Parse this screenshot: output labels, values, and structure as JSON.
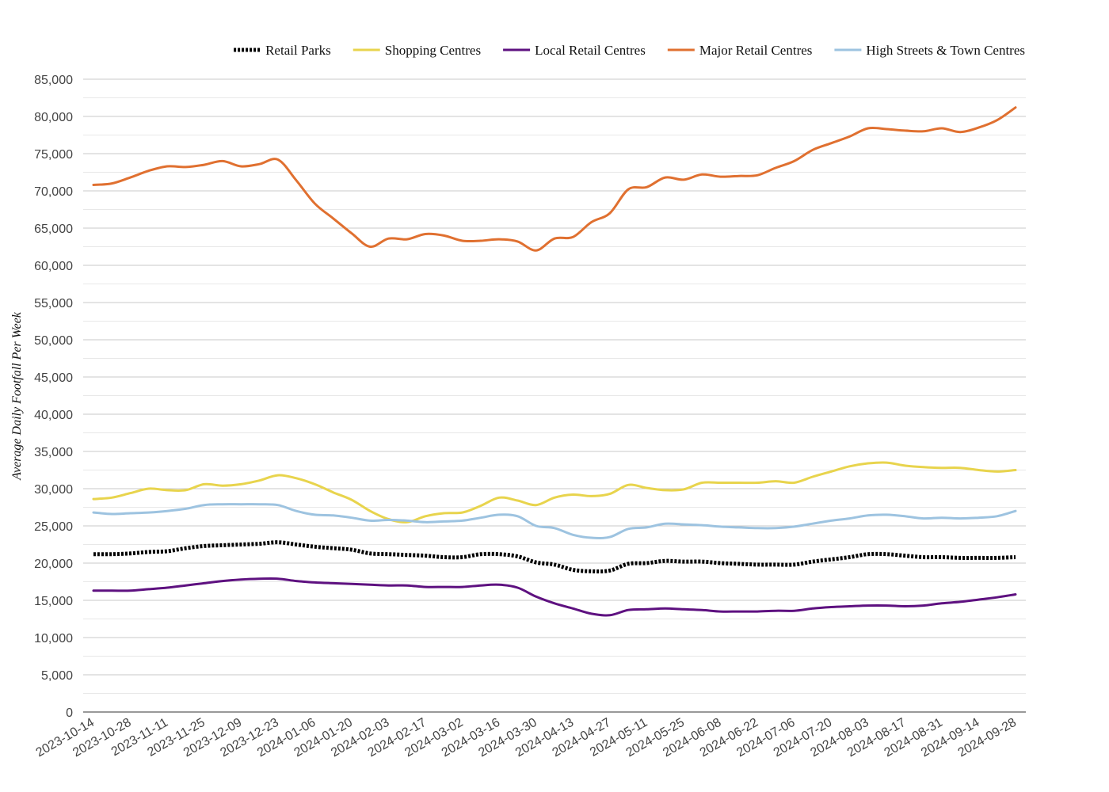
{
  "chart_data": {
    "type": "line",
    "title": "",
    "xlabel": "",
    "ylabel": "Average Daily Footfall Per Week",
    "ylim": [
      0,
      85000
    ],
    "y_major_step": 5000,
    "grid": "horizontal major and minor",
    "legend_position": "top",
    "x_tick_labels": [
      "2023-10-14",
      "2023-10-28",
      "2023-11-11",
      "2023-11-25",
      "2023-12-09",
      "2023-12-23",
      "2024-01-06",
      "2024-01-20",
      "2024-02-03",
      "2024-02-17",
      "2024-03-02",
      "2024-03-16",
      "2024-03-30",
      "2024-04-13",
      "2024-04-27",
      "2024-05-11",
      "2024-05-25",
      "2024-06-08",
      "2024-06-22",
      "2024-07-06",
      "2024-07-20",
      "2024-08-03",
      "2024-08-17",
      "2024-08-31",
      "2024-09-14",
      "2024-09-28"
    ],
    "y_tick_labels": [
      "0",
      "5,000",
      "10,000",
      "15,000",
      "20,000",
      "25,000",
      "30,000",
      "35,000",
      "40,000",
      "45,000",
      "50,000",
      "55,000",
      "60,000",
      "65,000",
      "70,000",
      "75,000",
      "80,000",
      "85,000"
    ],
    "x": [
      "2023-10-14",
      "2023-10-21",
      "2023-10-28",
      "2023-11-04",
      "2023-11-11",
      "2023-11-18",
      "2023-11-25",
      "2023-12-02",
      "2023-12-09",
      "2023-12-16",
      "2023-12-23",
      "2023-12-30",
      "2024-01-06",
      "2024-01-13",
      "2024-01-20",
      "2024-01-27",
      "2024-02-03",
      "2024-02-10",
      "2024-02-17",
      "2024-02-24",
      "2024-03-02",
      "2024-03-09",
      "2024-03-16",
      "2024-03-23",
      "2024-03-30",
      "2024-04-06",
      "2024-04-13",
      "2024-04-20",
      "2024-04-27",
      "2024-05-04",
      "2024-05-11",
      "2024-05-18",
      "2024-05-25",
      "2024-06-01",
      "2024-06-08",
      "2024-06-15",
      "2024-06-22",
      "2024-06-29",
      "2024-07-06",
      "2024-07-13",
      "2024-07-20",
      "2024-07-27",
      "2024-08-03",
      "2024-08-10",
      "2024-08-17",
      "2024-08-24",
      "2024-08-31",
      "2024-09-07",
      "2024-09-14",
      "2024-09-21",
      "2024-09-28"
    ],
    "series": [
      {
        "name": "Retail Parks",
        "color": "#000000",
        "style": "dotted",
        "values": [
          21200,
          21200,
          21300,
          21500,
          21600,
          22000,
          22300,
          22400,
          22500,
          22600,
          22800,
          22500,
          22200,
          22000,
          21800,
          21300,
          21200,
          21100,
          21000,
          20800,
          20800,
          21200,
          21200,
          20900,
          20100,
          19800,
          19100,
          18900,
          19000,
          19900,
          20000,
          20300,
          20200,
          20200,
          20000,
          19900,
          19800,
          19800,
          19800,
          20200,
          20500,
          20800,
          21200,
          21200,
          21000,
          20800,
          20800,
          20700,
          20700,
          20700,
          20800
        ]
      },
      {
        "name": "Shopping Centres",
        "color": "#E8D44D",
        "style": "solid",
        "values": [
          28600,
          28800,
          29400,
          30000,
          29800,
          29800,
          30600,
          30400,
          30600,
          31100,
          31800,
          31400,
          30600,
          29500,
          28500,
          27000,
          25900,
          25500,
          26300,
          26700,
          26800,
          27700,
          28800,
          28400,
          27800,
          28800,
          29200,
          29000,
          29300,
          30500,
          30100,
          29800,
          29900,
          30800,
          30800,
          30800,
          30800,
          31000,
          30800,
          31600,
          32300,
          33000,
          33400,
          33500,
          33100,
          32900,
          32800,
          32800,
          32500,
          32300,
          32500
        ]
      },
      {
        "name": "Local Retail Centres",
        "color": "#5E1180",
        "style": "solid",
        "values": [
          16300,
          16300,
          16300,
          16500,
          16700,
          17000,
          17300,
          17600,
          17800,
          17900,
          17900,
          17600,
          17400,
          17300,
          17200,
          17100,
          17000,
          17000,
          16800,
          16800,
          16800,
          17000,
          17100,
          16700,
          15500,
          14600,
          13900,
          13200,
          13000,
          13700,
          13800,
          13900,
          13800,
          13700,
          13500,
          13500,
          13500,
          13600,
          13600,
          13900,
          14100,
          14200,
          14300,
          14300,
          14200,
          14300,
          14600,
          14800,
          15100,
          15400,
          15800
        ]
      },
      {
        "name": "Major Retail Centres",
        "color": "#E07030",
        "style": "solid",
        "values": [
          70800,
          71000,
          71800,
          72700,
          73300,
          73200,
          73500,
          74000,
          73300,
          73600,
          74200,
          71400,
          68300,
          66300,
          64300,
          62500,
          63600,
          63500,
          64200,
          64000,
          63300,
          63300,
          63500,
          63200,
          62000,
          63600,
          63800,
          65800,
          67000,
          70200,
          70500,
          71800,
          71500,
          72200,
          71900,
          72000,
          72100,
          73100,
          74000,
          75500,
          76400,
          77300,
          78400,
          78300,
          78100,
          78000,
          78400,
          77900,
          78500,
          79500,
          81200
        ]
      },
      {
        "name": "High Streets & Town Centres",
        "color": "#9DC3E0",
        "style": "solid",
        "values": [
          26800,
          26600,
          26700,
          26800,
          27000,
          27300,
          27800,
          27900,
          27900,
          27900,
          27800,
          27000,
          26500,
          26400,
          26100,
          25700,
          25800,
          25700,
          25500,
          25600,
          25700,
          26100,
          26500,
          26300,
          25000,
          24700,
          23800,
          23400,
          23500,
          24600,
          24800,
          25300,
          25200,
          25100,
          24900,
          24800,
          24700,
          24700,
          24900,
          25300,
          25700,
          26000,
          26400,
          26500,
          26300,
          26000,
          26100,
          26000,
          26100,
          26300,
          27000
        ]
      }
    ]
  }
}
